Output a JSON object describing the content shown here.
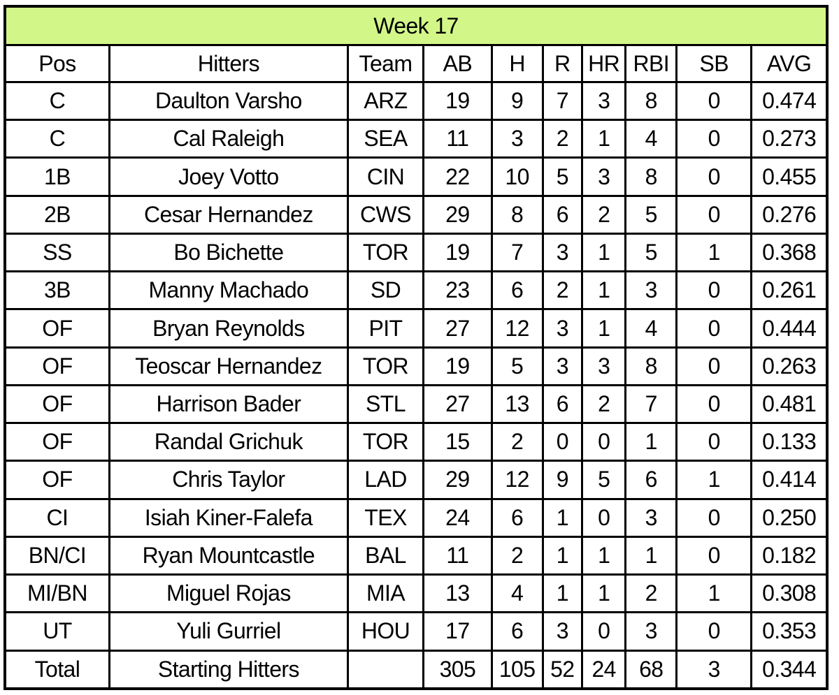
{
  "ui": {
    "title_bg": "#d2f788",
    "border_color": "#000000",
    "text_color": "#000000",
    "column_keys": [
      "pos",
      "hitter",
      "team",
      "ab",
      "h",
      "r",
      "hr",
      "rbi",
      "sb",
      "avg"
    ]
  },
  "chart_data": {
    "type": "table",
    "title": "Week 17",
    "columns": [
      "Pos",
      "Hitters",
      "Team",
      "AB",
      "H",
      "R",
      "HR",
      "RBI",
      "SB",
      "AVG"
    ],
    "rows": [
      [
        "C",
        "Daulton Varsho",
        "ARZ",
        "19",
        "9",
        "7",
        "3",
        "8",
        "0",
        "0.474"
      ],
      [
        "C",
        "Cal Raleigh",
        "SEA",
        "11",
        "3",
        "2",
        "1",
        "4",
        "0",
        "0.273"
      ],
      [
        "1B",
        "Joey Votto",
        "CIN",
        "22",
        "10",
        "5",
        "3",
        "8",
        "0",
        "0.455"
      ],
      [
        "2B",
        "Cesar Hernandez",
        "CWS",
        "29",
        "8",
        "6",
        "2",
        "5",
        "0",
        "0.276"
      ],
      [
        "SS",
        "Bo Bichette",
        "TOR",
        "19",
        "7",
        "3",
        "1",
        "5",
        "1",
        "0.368"
      ],
      [
        "3B",
        "Manny Machado",
        "SD",
        "23",
        "6",
        "2",
        "1",
        "3",
        "0",
        "0.261"
      ],
      [
        "OF",
        "Bryan Reynolds",
        "PIT",
        "27",
        "12",
        "3",
        "1",
        "4",
        "0",
        "0.444"
      ],
      [
        "OF",
        "Teoscar Hernandez",
        "TOR",
        "19",
        "5",
        "3",
        "3",
        "8",
        "0",
        "0.263"
      ],
      [
        "OF",
        "Harrison Bader",
        "STL",
        "27",
        "13",
        "6",
        "2",
        "7",
        "0",
        "0.481"
      ],
      [
        "OF",
        "Randal Grichuk",
        "TOR",
        "15",
        "2",
        "0",
        "0",
        "1",
        "0",
        "0.133"
      ],
      [
        "OF",
        "Chris Taylor",
        "LAD",
        "29",
        "12",
        "9",
        "5",
        "6",
        "1",
        "0.414"
      ],
      [
        "CI",
        "Isiah Kiner-Falefa",
        "TEX",
        "24",
        "6",
        "1",
        "0",
        "3",
        "0",
        "0.250"
      ],
      [
        "BN/CI",
        "Ryan Mountcastle",
        "BAL",
        "11",
        "2",
        "1",
        "1",
        "1",
        "0",
        "0.182"
      ],
      [
        "MI/BN",
        "Miguel Rojas",
        "MIA",
        "13",
        "4",
        "1",
        "1",
        "2",
        "1",
        "0.308"
      ],
      [
        "UT",
        "Yuli Gurriel",
        "HOU",
        "17",
        "6",
        "3",
        "0",
        "3",
        "0",
        "0.353"
      ]
    ],
    "total_row": [
      "Total",
      "Starting Hitters",
      "",
      "305",
      "105",
      "52",
      "24",
      "68",
      "3",
      "0.344"
    ]
  }
}
